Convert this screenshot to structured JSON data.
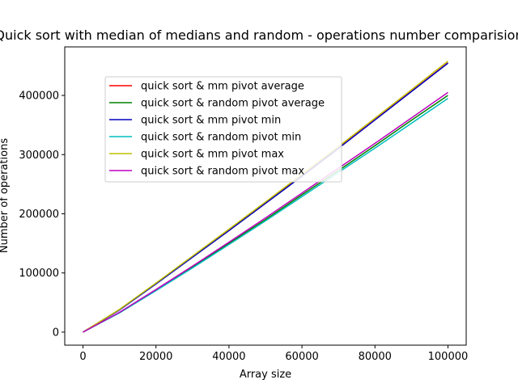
{
  "chart_data": {
    "type": "line",
    "title": "Quick sort with median of medians and random - operations number comparision",
    "xlabel": "Array size",
    "ylabel": "Number of operations",
    "xlim": [
      -5000,
      105000
    ],
    "ylim": [
      -22000,
      482000
    ],
    "x_ticks": [
      0,
      20000,
      40000,
      60000,
      80000,
      100000
    ],
    "x_tick_labels": [
      "0",
      "20000",
      "40000",
      "60000",
      "80000",
      "100000"
    ],
    "y_ticks": [
      0,
      100000,
      200000,
      300000,
      400000
    ],
    "y_tick_labels": [
      "0",
      "100000",
      "200000",
      "300000",
      "400000"
    ],
    "legend_position": "upper-left",
    "x": [
      0,
      10000,
      20000,
      30000,
      40000,
      50000,
      60000,
      70000,
      80000,
      90000,
      100000
    ],
    "series": [
      {
        "name": "quick sort & mm pivot average",
        "color": "#ff0000",
        "values": [
          0,
          38000,
          82000,
          127000,
          172000,
          218000,
          264000,
          311000,
          359000,
          407000,
          455000
        ]
      },
      {
        "name": "quick sort & random pivot average",
        "color": "#008000",
        "values": [
          0,
          33000,
          71000,
          110000,
          150000,
          190000,
          232000,
          273000,
          315000,
          358000,
          400000
        ]
      },
      {
        "name": "quick sort & mm pivot min",
        "color": "#0000bf",
        "values": [
          0,
          37500,
          81500,
          126500,
          171500,
          217500,
          263500,
          310500,
          358500,
          406500,
          454500
        ]
      },
      {
        "name": "quick sort & random pivot min",
        "color": "#00bfbf",
        "values": [
          0,
          32500,
          70000,
          108500,
          148000,
          188000,
          229000,
          270000,
          311000,
          353000,
          395000
        ]
      },
      {
        "name": "quick sort & mm pivot max",
        "color": "#bfbf00",
        "values": [
          0,
          38500,
          83000,
          128500,
          174000,
          220000,
          266500,
          313500,
          361500,
          409500,
          458000
        ]
      },
      {
        "name": "quick sort & random pivot max",
        "color": "#bf00bf",
        "values": [
          0,
          33500,
          72000,
          111500,
          152000,
          193000,
          235000,
          277000,
          319000,
          362000,
          405000
        ]
      }
    ]
  }
}
